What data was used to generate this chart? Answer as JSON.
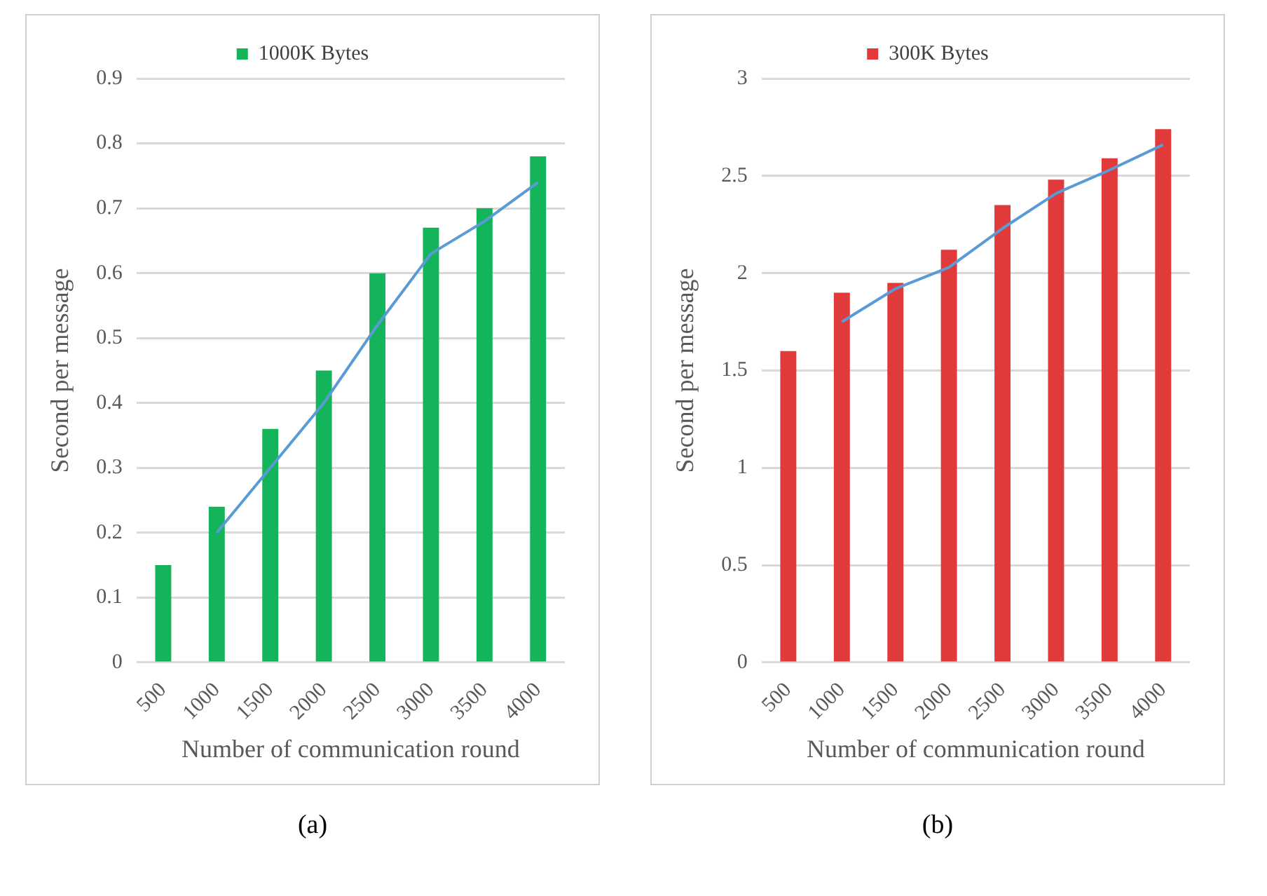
{
  "chart_data": [
    {
      "type": "bar",
      "categories": [
        "500",
        "1000",
        "1500",
        "2000",
        "2500",
        "3000",
        "3500",
        "4000"
      ],
      "xlabel": "Number of communication round",
      "ylabel": "Second per message",
      "ylim": [
        0,
        0.9
      ],
      "yticks": [
        0,
        0.1,
        0.2,
        0.3,
        0.4,
        0.5,
        0.6,
        0.7,
        0.8,
        0.9
      ],
      "grid": "y",
      "legend": "top",
      "annotations": [
        "(a)"
      ],
      "series": [
        {
          "name": "1000K Bytes",
          "color": "#14b45a",
          "values": [
            0.15,
            0.24,
            0.36,
            0.45,
            0.6,
            0.67,
            0.7,
            0.78
          ]
        },
        {
          "type": "line",
          "color": "#5b9bd5",
          "values": [
            null,
            0.2,
            0.3,
            0.4,
            0.52,
            0.63,
            0.68,
            0.74
          ]
        }
      ]
    },
    {
      "type": "bar",
      "categories": [
        "500",
        "1000",
        "1500",
        "2000",
        "2500",
        "3000",
        "3500",
        "4000"
      ],
      "xlabel": "Number of communication round",
      "ylabel": "Second per message",
      "ylim": [
        0,
        3
      ],
      "yticks": [
        0,
        0.5,
        1,
        1.5,
        2,
        2.5,
        3
      ],
      "grid": "y",
      "legend": "top",
      "annotations": [
        "(b)"
      ],
      "series": [
        {
          "name": "300K Bytes",
          "color": "#e03a3a",
          "values": [
            1.6,
            1.9,
            1.95,
            2.12,
            2.35,
            2.48,
            2.59,
            2.74
          ]
        },
        {
          "type": "line",
          "color": "#5b9bd5",
          "values": [
            null,
            1.75,
            1.92,
            2.03,
            2.23,
            2.41,
            2.53,
            2.66
          ]
        }
      ]
    }
  ]
}
